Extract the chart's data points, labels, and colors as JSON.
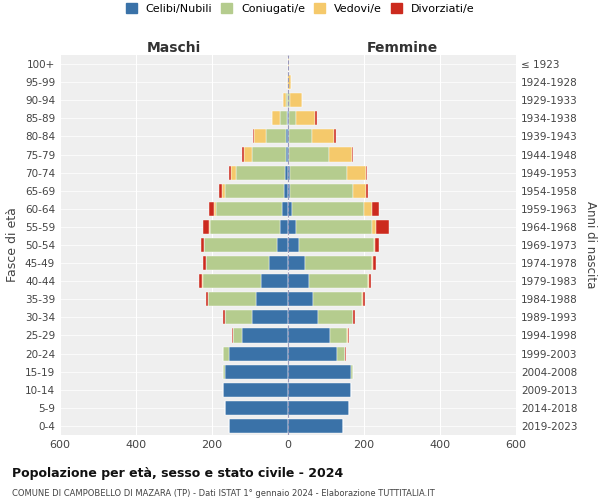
{
  "age_groups": [
    "0-4",
    "5-9",
    "10-14",
    "15-19",
    "20-24",
    "25-29",
    "30-34",
    "35-39",
    "40-44",
    "45-49",
    "50-54",
    "55-59",
    "60-64",
    "65-69",
    "70-74",
    "75-79",
    "80-84",
    "85-89",
    "90-94",
    "95-99",
    "100+"
  ],
  "birth_years": [
    "2019-2023",
    "2014-2018",
    "2009-2013",
    "2004-2008",
    "1999-2003",
    "1994-1998",
    "1989-1993",
    "1984-1988",
    "1979-1983",
    "1974-1978",
    "1969-1973",
    "1964-1968",
    "1959-1963",
    "1954-1958",
    "1949-1953",
    "1944-1948",
    "1939-1943",
    "1934-1938",
    "1929-1933",
    "1924-1928",
    "≤ 1923"
  ],
  "colors": {
    "celibi": "#3a72a8",
    "coniugati": "#b5cc8e",
    "vedovi": "#f5c96b",
    "divorziati": "#cc2a1e"
  },
  "maschi": {
    "celibi": [
      155,
      165,
      170,
      165,
      155,
      120,
      95,
      85,
      70,
      50,
      30,
      20,
      15,
      10,
      8,
      6,
      4,
      2,
      1,
      0,
      0
    ],
    "coniugati": [
      0,
      0,
      0,
      5,
      15,
      25,
      70,
      125,
      155,
      165,
      190,
      185,
      175,
      155,
      130,
      90,
      55,
      20,
      5,
      1,
      0
    ],
    "vedovi": [
      0,
      0,
      0,
      0,
      1,
      0,
      1,
      1,
      1,
      1,
      2,
      3,
      5,
      8,
      12,
      20,
      30,
      20,
      8,
      1,
      0
    ],
    "divorziati": [
      0,
      0,
      0,
      0,
      0,
      2,
      4,
      4,
      8,
      8,
      8,
      15,
      12,
      8,
      5,
      4,
      2,
      0,
      0,
      0,
      0
    ]
  },
  "femmine": {
    "celibi": [
      145,
      160,
      165,
      165,
      130,
      110,
      80,
      65,
      55,
      45,
      30,
      20,
      10,
      5,
      4,
      3,
      2,
      2,
      1,
      0,
      0
    ],
    "coniugati": [
      0,
      0,
      0,
      5,
      20,
      45,
      90,
      130,
      155,
      175,
      195,
      200,
      190,
      165,
      150,
      105,
      60,
      20,
      5,
      1,
      0
    ],
    "vedovi": [
      0,
      0,
      0,
      0,
      1,
      2,
      2,
      2,
      2,
      3,
      5,
      12,
      20,
      35,
      50,
      60,
      60,
      50,
      30,
      8,
      2
    ],
    "divorziati": [
      0,
      0,
      0,
      0,
      2,
      4,
      4,
      5,
      6,
      8,
      10,
      35,
      20,
      5,
      5,
      4,
      5,
      4,
      1,
      0,
      0
    ]
  },
  "xlim": 600,
  "title": "Popolazione per età, sesso e stato civile - 2024",
  "subtitle": "COMUNE DI CAMPOBELLO DI MAZARA (TP) - Dati ISTAT 1° gennaio 2024 - Elaborazione TUTTITALIA.IT",
  "ylabel_left": "Fasce di età",
  "ylabel_right": "Anni di nascita",
  "xlabel_maschi": "Maschi",
  "xlabel_femmine": "Femmine",
  "legend_labels": [
    "Celibi/Nubili",
    "Coniugati/e",
    "Vedovi/e",
    "Divorziati/e"
  ],
  "bg_color": "#ffffff",
  "plot_bg": "#efefef",
  "grid_color": "#cccccc"
}
